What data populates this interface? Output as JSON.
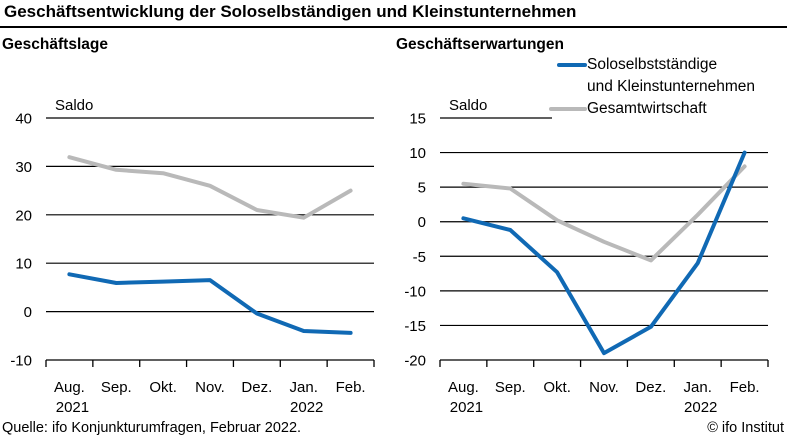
{
  "title": "Geschäftsentwicklung der Soloselbständigen und Kleinstunternehmen",
  "footer": {
    "source": "Quelle: ifo Konjunkturumfragen, Februar 2022.",
    "copyright": "© ifo Institut"
  },
  "colors": {
    "solo": "#1069b4",
    "gesamt": "#b9b9b9",
    "text": "#000000",
    "grid": "#000000"
  },
  "legend": {
    "items": [
      {
        "label_line1": "Soloselbstständige",
        "label_line2": "und Kleinstunternehmen",
        "color_key": "solo"
      },
      {
        "label_line1": "Gesamtwirtschaft",
        "color_key": "gesamt"
      }
    ]
  },
  "chart_data": [
    {
      "type": "line",
      "title": "Geschäftslage",
      "ylabel": "Saldo",
      "categories": [
        "Aug.",
        "Sep.",
        "Okt.",
        "Nov.",
        "Dez.",
        "Jan.",
        "Feb."
      ],
      "year_labels": [
        {
          "index": 0,
          "label": "2021"
        },
        {
          "index": 5,
          "label": "2022"
        }
      ],
      "ylim": [
        -10,
        40
      ],
      "ytick_step": 10,
      "grid": true,
      "short_top_gridline": false,
      "series": [
        {
          "name": "Soloselbstständige und Kleinstunternehmen",
          "color_key": "solo",
          "values": [
            7.7,
            5.9,
            6.2,
            6.5,
            -0.4,
            -4.0,
            -4.4
          ]
        },
        {
          "name": "Gesamtwirtschaft",
          "color_key": "gesamt",
          "values": [
            31.9,
            29.3,
            28.6,
            26.0,
            21.0,
            19.4,
            25.0
          ]
        }
      ]
    },
    {
      "type": "line",
      "title": "Geschäftserwartungen",
      "ylabel": "Saldo",
      "categories": [
        "Aug.",
        "Sep.",
        "Okt.",
        "Nov.",
        "Dez.",
        "Jan.",
        "Feb."
      ],
      "year_labels": [
        {
          "index": 0,
          "label": "2021"
        },
        {
          "index": 5,
          "label": "2022"
        }
      ],
      "ylim": [
        -20,
        15
      ],
      "ytick_step": 5,
      "grid": true,
      "short_top_gridline": true,
      "series": [
        {
          "name": "Soloselbstständige und Kleinstunternehmen",
          "color_key": "solo",
          "values": [
            0.5,
            -1.2,
            -7.3,
            -19.0,
            -15.2,
            -6.0,
            10.0
          ]
        },
        {
          "name": "Gesamtwirtschaft",
          "color_key": "gesamt",
          "values": [
            5.5,
            4.8,
            0.2,
            -2.9,
            -5.6,
            1.0,
            8.0
          ]
        }
      ]
    }
  ]
}
